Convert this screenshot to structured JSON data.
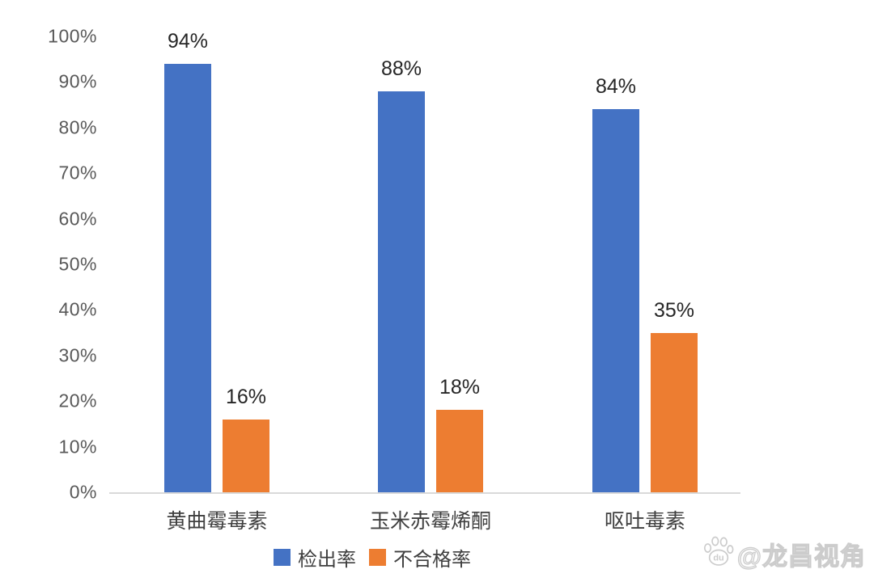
{
  "chart_data": {
    "type": "bar",
    "title": "",
    "xlabel": "",
    "ylabel": "",
    "categories": [
      "黄曲霉毒素",
      "玉米赤霉烯酮",
      "呕吐毒素"
    ],
    "series": [
      {
        "name": "检出率",
        "color": "#4472c4",
        "values": [
          94,
          88,
          84
        ]
      },
      {
        "name": "不合格率",
        "color": "#ed7d31",
        "values": [
          16,
          18,
          35
        ]
      }
    ],
    "value_suffix": "%",
    "data_labels": [
      [
        "94%",
        "88%",
        "84%"
      ],
      [
        "16%",
        "18%",
        "35%"
      ]
    ],
    "y_ticks": [
      "0%",
      "10%",
      "20%",
      "30%",
      "40%",
      "50%",
      "60%",
      "70%",
      "80%",
      "90%",
      "100%"
    ],
    "ylim": [
      0,
      100
    ],
    "grid": false,
    "legend_position": "bottom"
  },
  "legend": {
    "items": [
      {
        "label": "检出率",
        "color": "#4472c4"
      },
      {
        "label": "不合格率",
        "color": "#ed7d31"
      }
    ]
  },
  "watermark": {
    "text": "@龙昌视角",
    "icon": "paw-icon",
    "icon_text": "du"
  },
  "colors": {
    "series_blue": "#4472c4",
    "series_orange": "#ed7d31",
    "tick_text": "#595959",
    "data_label_text": "#262626",
    "category_text": "#3f3f3f",
    "axis_line": "#d9d9d9",
    "watermark_outline": "#cccccc"
  }
}
